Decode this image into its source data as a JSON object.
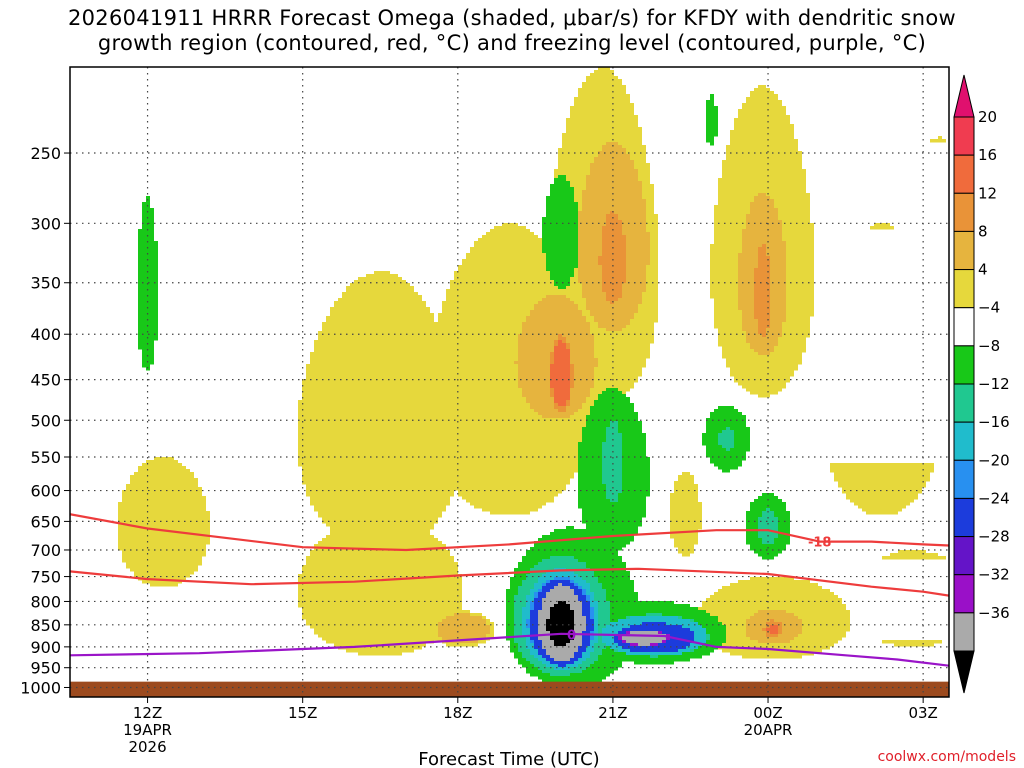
{
  "title": {
    "line1": "2026041911 HRRR Forecast Omega (shaded, μbar/s) for KFDY with dendritic snow",
    "line2": "growth region (contoured, red, °C) and freezing level (contoured, purple, °C)"
  },
  "credit": "coolwx.com/models",
  "colors": {
    "ground": "#9c4a1e",
    "dgz_line": "#ee3c3c",
    "freezing_line": "#9a14c8",
    "dotted_grid": "#444444"
  },
  "chart_data": {
    "type": "heatmap",
    "xlabel": "Forecast Time (UTC)",
    "ylabel": "",
    "x_range_hours": [
      10.5,
      27.5
    ],
    "y_range_hpa": [
      200,
      1025
    ],
    "y_scale": "log-pressure",
    "grid": "dotted",
    "y_ticks": [
      250,
      300,
      350,
      400,
      450,
      500,
      550,
      600,
      650,
      700,
      750,
      800,
      850,
      900,
      950,
      1000
    ],
    "x_ticks": [
      {
        "hour": 12,
        "label": "12Z",
        "sub1": "19APR",
        "sub2": "2026"
      },
      {
        "hour": 15,
        "label": "15Z",
        "sub1": "",
        "sub2": ""
      },
      {
        "hour": 18,
        "label": "18Z",
        "sub1": "",
        "sub2": ""
      },
      {
        "hour": 21,
        "label": "21Z",
        "sub1": "",
        "sub2": ""
      },
      {
        "hour": 24,
        "label": "00Z",
        "sub1": "20APR",
        "sub2": ""
      },
      {
        "hour": 27,
        "label": "03Z",
        "sub1": "",
        "sub2": ""
      }
    ],
    "colorbar": {
      "levels": [
        20,
        16,
        12,
        8,
        4,
        -4,
        -8,
        -12,
        -16,
        -20,
        -24,
        -28,
        -32,
        -36
      ],
      "colors": [
        "#f03c50",
        "#f06b3c",
        "#e99338",
        "#e6b43e",
        "#e6d83c",
        "#ffffff",
        "#18c818",
        "#20c890",
        "#20bccc",
        "#2890f0",
        "#1c3cdc",
        "#6414c8",
        "#9a10c8",
        "#aaaaaa",
        "#000000"
      ],
      "top_cap_color": "#e0106e",
      "bottom_cap_color": "#000000"
    },
    "contours": {
      "dgz_upper": {
        "label": "-18",
        "pressure": [
          638,
          662,
          695,
          700,
          690,
          675,
          665,
          665,
          685,
          685,
          690,
          692
        ],
        "hour": [
          10.5,
          12,
          15,
          17,
          19,
          21,
          23,
          24,
          25,
          26,
          27,
          27.5
        ]
      },
      "dgz_lower": {
        "pressure": [
          740,
          755,
          765,
          760,
          748,
          738,
          735,
          745,
          770,
          780,
          788
        ],
        "hour": [
          10.5,
          12,
          14,
          16,
          18,
          20,
          21.5,
          24,
          26,
          27,
          27.5
        ]
      },
      "freezing": {
        "label": "0",
        "pressure": [
          920,
          915,
          900,
          885,
          870,
          875,
          900,
          905,
          920,
          930,
          945
        ],
        "hour": [
          10.5,
          13,
          16,
          18,
          20,
          22,
          23,
          24,
          25.5,
          26.5,
          27.5
        ]
      }
    },
    "blobs": [
      {
        "h": 12.0,
        "p": 360,
        "rx": 0.2,
        "ry": 80,
        "v": -6
      },
      {
        "h": 20.0,
        "p": 310,
        "rx": 0.35,
        "ry": 45,
        "v": -6
      },
      {
        "h": 22.9,
        "p": 230,
        "rx": 0.12,
        "ry": 15,
        "v": -6
      },
      {
        "h": 16.5,
        "p": 520,
        "rx": 1.6,
        "ry": 180,
        "v": 5
      },
      {
        "h": 19.0,
        "p": 470,
        "rx": 1.6,
        "ry": 170,
        "v": 5
      },
      {
        "h": 20.8,
        "p": 340,
        "rx": 1.1,
        "ry": 140,
        "v": 6
      },
      {
        "h": 21.0,
        "p": 320,
        "rx": 0.8,
        "ry": 90,
        "v": 9
      },
      {
        "h": 21.0,
        "p": 330,
        "rx": 0.35,
        "ry": 55,
        "v": 13
      },
      {
        "h": 19.9,
        "p": 430,
        "rx": 0.9,
        "ry": 80,
        "v": 9
      },
      {
        "h": 20.0,
        "p": 445,
        "rx": 0.22,
        "ry": 45,
        "v": 18
      },
      {
        "h": 23.9,
        "p": 340,
        "rx": 1.0,
        "ry": 130,
        "v": 6
      },
      {
        "h": 23.9,
        "p": 350,
        "rx": 0.55,
        "ry": 85,
        "v": 9
      },
      {
        "h": 23.9,
        "p": 360,
        "rx": 0.22,
        "ry": 60,
        "v": 13
      },
      {
        "h": 26.2,
        "p": 470,
        "rx": 1.2,
        "ry": 170,
        "v": 5
      },
      {
        "h": 27.3,
        "p": 400,
        "rx": 1.0,
        "ry": 160,
        "v": 5
      },
      {
        "h": 12.3,
        "p": 660,
        "rx": 0.9,
        "ry": 110,
        "v": 5
      },
      {
        "h": 16.5,
        "p": 780,
        "rx": 1.6,
        "ry": 140,
        "v": 5
      },
      {
        "h": 18.1,
        "p": 860,
        "rx": 0.6,
        "ry": 40,
        "v": 9
      },
      {
        "h": 24.1,
        "p": 840,
        "rx": 1.5,
        "ry": 90,
        "v": 5
      },
      {
        "h": 24.1,
        "p": 855,
        "rx": 0.65,
        "ry": 45,
        "v": 9
      },
      {
        "h": 24.1,
        "p": 860,
        "rx": 0.18,
        "ry": 20,
        "v": 17
      },
      {
        "h": 26.8,
        "p": 800,
        "rx": 1.2,
        "ry": 100,
        "v": 5
      },
      {
        "h": 22.4,
        "p": 640,
        "rx": 0.3,
        "ry": 70,
        "v": 5
      },
      {
        "h": 23.2,
        "p": 525,
        "rx": 0.45,
        "ry": 45,
        "v": -6
      },
      {
        "h": 23.2,
        "p": 525,
        "rx": 0.15,
        "ry": 15,
        "v": -10
      },
      {
        "h": 24.0,
        "p": 660,
        "rx": 0.45,
        "ry": 55,
        "v": -6
      },
      {
        "h": 24.0,
        "p": 660,
        "rx": 0.2,
        "ry": 30,
        "v": -10
      },
      {
        "h": 21.0,
        "p": 580,
        "rx": 0.7,
        "ry": 120,
        "v": -6
      },
      {
        "h": 21.0,
        "p": 560,
        "rx": 0.2,
        "ry": 60,
        "v": -10
      },
      {
        "h": 20.2,
        "p": 830,
        "rx": 1.3,
        "ry": 170,
        "v": -8
      },
      {
        "h": 20.0,
        "p": 840,
        "rx": 0.95,
        "ry": 130,
        "v": -13
      },
      {
        "h": 20.0,
        "p": 845,
        "rx": 0.75,
        "ry": 110,
        "v": -18
      },
      {
        "h": 20.0,
        "p": 850,
        "rx": 0.6,
        "ry": 95,
        "v": -26
      },
      {
        "h": 20.0,
        "p": 850,
        "rx": 0.45,
        "ry": 85,
        "v": -38
      },
      {
        "h": 21.8,
        "p": 870,
        "rx": 1.4,
        "ry": 70,
        "v": -8
      },
      {
        "h": 21.8,
        "p": 875,
        "rx": 1.05,
        "ry": 48,
        "v": -14
      },
      {
        "h": 21.8,
        "p": 880,
        "rx": 0.8,
        "ry": 34,
        "v": -24
      },
      {
        "h": 21.6,
        "p": 880,
        "rx": 0.5,
        "ry": 18,
        "v": -36
      }
    ]
  }
}
